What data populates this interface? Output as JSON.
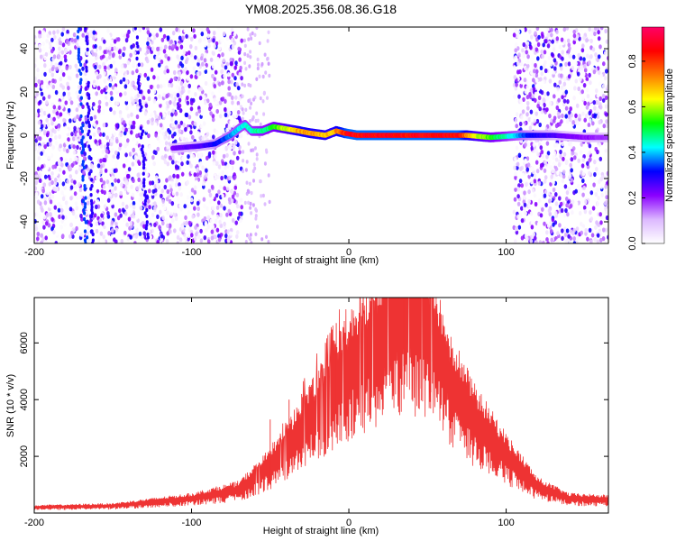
{
  "title": "YM08.2025.356.08.36.G18",
  "chart_data": [
    {
      "type": "heatmap",
      "name": "spectrogram",
      "xlabel": "Height of straight line (km)",
      "ylabel": "Frequency (Hz)",
      "xlim": [
        -200,
        165
      ],
      "ylim": [
        -50,
        50
      ],
      "xticks": [
        -200,
        -100,
        0,
        100
      ],
      "yticks": [
        -40,
        -20,
        0,
        20,
        40
      ],
      "colorbar": {
        "label": "Normalized spectral amplitude",
        "range": [
          0,
          0.95
        ],
        "ticks": [
          "0.0",
          "0.2",
          "0.4",
          "0.6",
          "0.8"
        ],
        "colors": [
          "#ffffff",
          "#dcb8ff",
          "#8a00ff",
          "#0000ff",
          "#00ffff",
          "#00ff00",
          "#ffff00",
          "#ff7a00",
          "#ff0000",
          "#ff0066"
        ]
      },
      "noise_regions_km": [
        [
          -200,
          -68
        ],
        [
          105,
          165
        ]
      ],
      "ridge": {
        "points": [
          [
            -112,
            -6
          ],
          [
            -95,
            -5
          ],
          [
            -85,
            -4
          ],
          [
            -75,
            0
          ],
          [
            -70,
            3
          ],
          [
            -66,
            5
          ],
          [
            -62,
            2
          ],
          [
            -55,
            2
          ],
          [
            -48,
            4
          ],
          [
            -40,
            3
          ],
          [
            -32,
            2
          ],
          [
            -25,
            1
          ],
          [
            -15,
            0
          ],
          [
            -8,
            2
          ],
          [
            -3,
            1
          ],
          [
            5,
            0
          ],
          [
            30,
            0
          ],
          [
            60,
            0
          ],
          [
            75,
            0
          ],
          [
            90,
            -1
          ],
          [
            110,
            0
          ],
          [
            130,
            0
          ],
          [
            150,
            -1
          ],
          [
            165,
            -1
          ]
        ],
        "amplitude": [
          [
            -112,
            0.25
          ],
          [
            -90,
            0.3
          ],
          [
            -70,
            0.45
          ],
          [
            -50,
            0.55
          ],
          [
            -30,
            0.8
          ],
          [
            -10,
            0.75
          ],
          [
            0,
            0.95
          ],
          [
            70,
            0.95
          ],
          [
            80,
            0.7
          ],
          [
            100,
            0.5
          ],
          [
            115,
            0.35
          ],
          [
            140,
            0.25
          ],
          [
            165,
            0.2
          ]
        ]
      }
    },
    {
      "type": "line",
      "name": "snr",
      "xlabel": "Height of straight line (km)",
      "ylabel": "SNR (10 * v/v)",
      "xlim": [
        -200,
        165
      ],
      "ylim": [
        0,
        7600
      ],
      "xticks": [
        -200,
        -100,
        0,
        100
      ],
      "yticks": [
        2000,
        4000,
        6000
      ],
      "color": "#ee3333",
      "envelope": [
        [
          -200,
          200
        ],
        [
          -150,
          250
        ],
        [
          -100,
          500
        ],
        [
          -70,
          800
        ],
        [
          -55,
          1400
        ],
        [
          -40,
          2200
        ],
        [
          -25,
          3200
        ],
        [
          -10,
          4300
        ],
        [
          5,
          5300
        ],
        [
          20,
          6200
        ],
        [
          35,
          6700
        ],
        [
          48,
          6600
        ],
        [
          55,
          5800
        ],
        [
          65,
          4500
        ],
        [
          80,
          3200
        ],
        [
          100,
          2000
        ],
        [
          120,
          900
        ],
        [
          140,
          500
        ],
        [
          165,
          450
        ]
      ],
      "spikes": [
        [
          -50,
          3300
        ],
        [
          -38,
          4000
        ],
        [
          -30,
          4200
        ],
        [
          -8,
          6700
        ],
        [
          -2,
          6200
        ],
        [
          12,
          6200
        ],
        [
          35,
          7500
        ],
        [
          46,
          7600
        ],
        [
          52,
          7200
        ]
      ]
    }
  ]
}
